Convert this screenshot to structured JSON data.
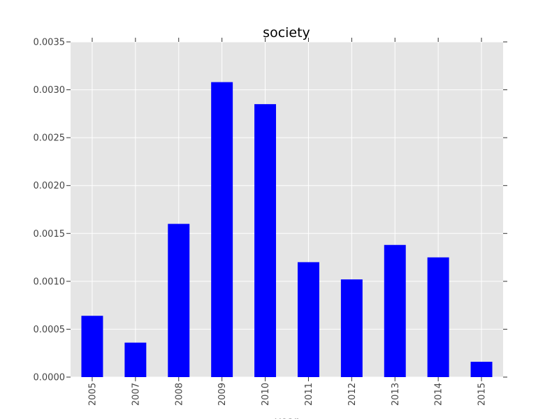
{
  "chart_data": {
    "type": "bar",
    "title": "society",
    "xlabel": "year",
    "ylabel": "",
    "categories": [
      "2005",
      "2007",
      "2008",
      "2009",
      "2010",
      "2011",
      "2012",
      "2013",
      "2014",
      "2015"
    ],
    "values": [
      0.00064,
      0.00036,
      0.0016,
      0.00308,
      0.00285,
      0.0012,
      0.00102,
      0.00138,
      0.00125,
      0.00016
    ],
    "ylim": [
      0,
      0.0035
    ],
    "yticks": [
      "0.0000",
      "0.0005",
      "0.0010",
      "0.0015",
      "0.0020",
      "0.0025",
      "0.0030",
      "0.0035"
    ],
    "grid": true,
    "bar_color": "#0000ff",
    "plot_background": "#e5e5e5",
    "grid_color": "#ffffff"
  }
}
